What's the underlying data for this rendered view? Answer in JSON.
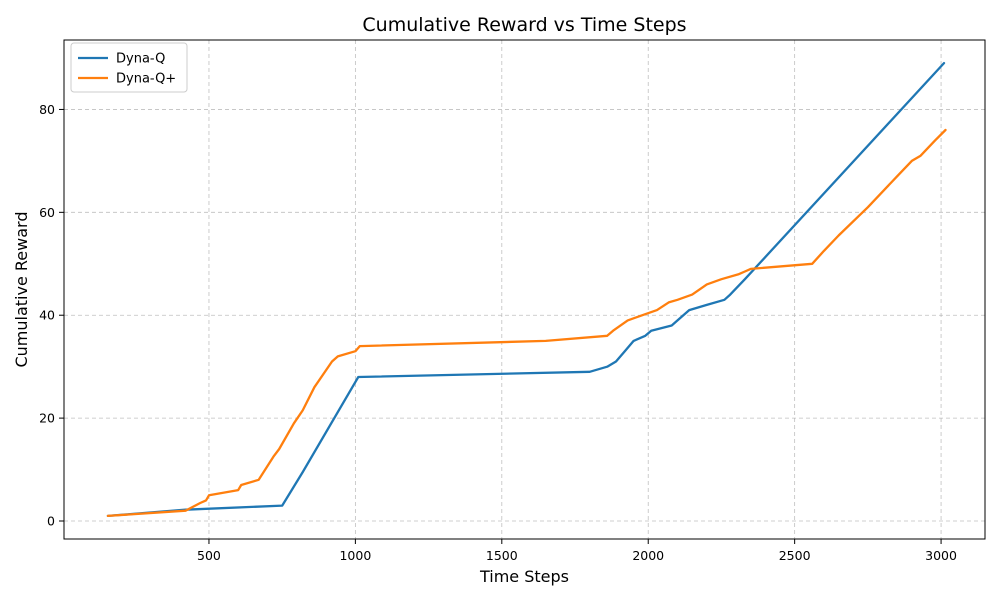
{
  "chart_data": {
    "type": "line",
    "title": "Cumulative Reward vs Time Steps",
    "xlabel": "Time Steps",
    "ylabel": "Cumulative Reward",
    "xlim": [
      5,
      3150
    ],
    "ylim": [
      -3.5,
      93.5
    ],
    "xticks": [
      500,
      1000,
      1500,
      2000,
      2500,
      3000
    ],
    "yticks": [
      0,
      20,
      40,
      60,
      80
    ],
    "grid": true,
    "legend_position": "upper-left",
    "series": [
      {
        "name": "Dyna-Q",
        "color": "#1f77b4",
        "x": [
          155,
          420,
          750,
          820,
          1010,
          1800,
          1860,
          1890,
          1920,
          1950,
          1990,
          2010,
          2080,
          2100,
          2140,
          2200,
          2260,
          2280,
          2330,
          3010
        ],
        "y": [
          1,
          2.2,
          3,
          9.5,
          28,
          29,
          30,
          31,
          33,
          35,
          36,
          37,
          38,
          39,
          41,
          42,
          43,
          44,
          47,
          89
        ]
      },
      {
        "name": "Dyna-Q+",
        "color": "#ff7f0e",
        "x": [
          155,
          420,
          470,
          490,
          500,
          600,
          610,
          670,
          720,
          740,
          790,
          820,
          860,
          920,
          940,
          1000,
          1015,
          1650,
          1860,
          1880,
          1930,
          1980,
          2030,
          2070,
          2100,
          2150,
          2200,
          2250,
          2310,
          2330,
          2350,
          2560,
          2600,
          2650,
          2750,
          2850,
          2900,
          2930,
          2980,
          3015
        ],
        "y": [
          1,
          2,
          3.5,
          4,
          5,
          6,
          7,
          8,
          12.5,
          14,
          19,
          21.5,
          26,
          31,
          32,
          33,
          34,
          35,
          36,
          37,
          39,
          40,
          41,
          42.5,
          43,
          44,
          46,
          47,
          48,
          48.5,
          49,
          50,
          52.5,
          55.5,
          61,
          67,
          70,
          71,
          74,
          76
        ]
      }
    ]
  }
}
